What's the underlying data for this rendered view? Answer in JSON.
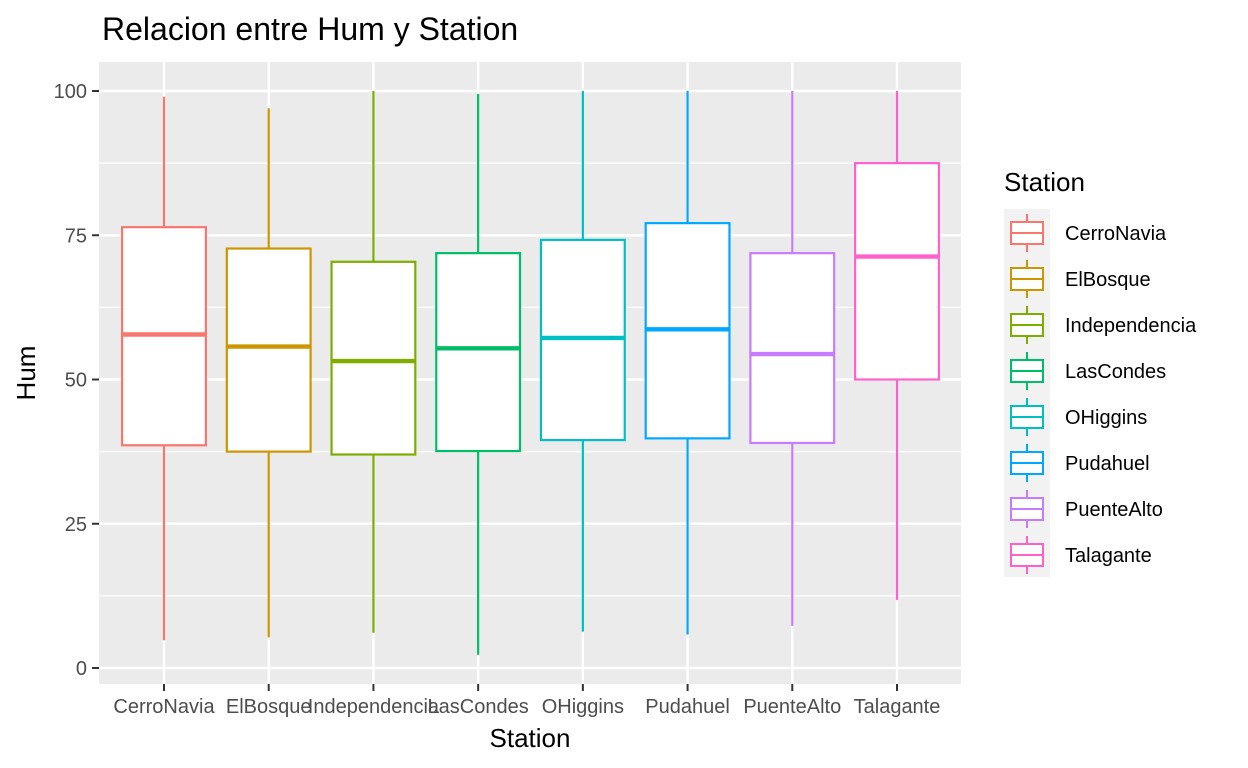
{
  "chart_data": {
    "type": "boxplot",
    "title": "Relacion entre Hum y Station",
    "xlabel": "Station",
    "ylabel": "Hum",
    "ylim": [
      0,
      100
    ],
    "yticks": [
      0,
      25,
      50,
      75,
      100
    ],
    "grid": true,
    "legend": {
      "title": "Station",
      "position": "right"
    },
    "categories": [
      "CerroNavia",
      "ElBosque",
      "Independencia",
      "LasCondes",
      "OHiggins",
      "Pudahuel",
      "PuenteAlto",
      "Talagante"
    ],
    "series": [
      {
        "name": "CerroNavia",
        "color": "#F8766D",
        "min": 4.8,
        "q1": 38.6,
        "median": 57.8,
        "q3": 76.4,
        "max": 99.0
      },
      {
        "name": "ElBosque",
        "color": "#CD9600",
        "min": 5.3,
        "q1": 37.5,
        "median": 55.7,
        "q3": 72.7,
        "max": 97.0
      },
      {
        "name": "Independencia",
        "color": "#7CAE00",
        "min": 6.1,
        "q1": 37.0,
        "median": 53.2,
        "q3": 70.4,
        "max": 100.0
      },
      {
        "name": "LasCondes",
        "color": "#00BE67",
        "min": 2.3,
        "q1": 37.6,
        "median": 55.4,
        "q3": 71.9,
        "max": 99.5
      },
      {
        "name": "OHiggins",
        "color": "#00BFC4",
        "min": 6.3,
        "q1": 39.5,
        "median": 57.2,
        "q3": 74.2,
        "max": 100.0
      },
      {
        "name": "Pudahuel",
        "color": "#00A9FF",
        "min": 5.8,
        "q1": 39.8,
        "median": 58.7,
        "q3": 77.1,
        "max": 100.0
      },
      {
        "name": "PuenteAlto",
        "color": "#C77CFF",
        "min": 7.3,
        "q1": 39.0,
        "median": 54.4,
        "q3": 71.9,
        "max": 100.0
      },
      {
        "name": "Talagante",
        "color": "#FF61CC",
        "min": 11.8,
        "q1": 50.0,
        "median": 71.3,
        "q3": 87.5,
        "max": 100.0
      }
    ]
  }
}
